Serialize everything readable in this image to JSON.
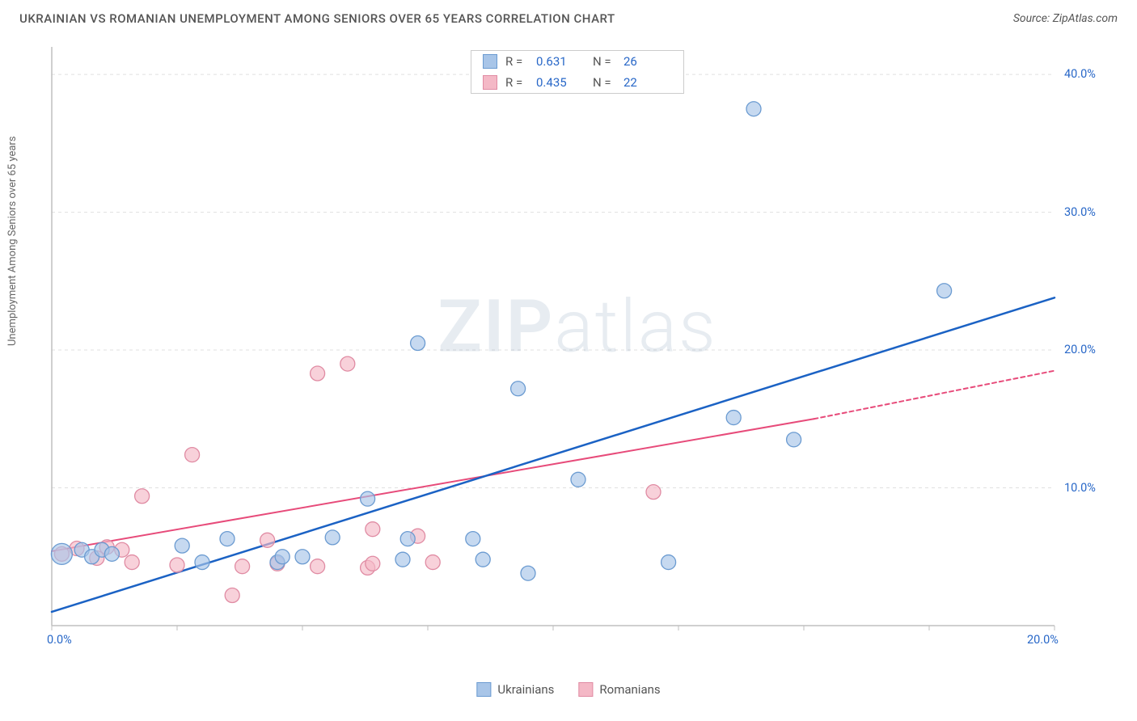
{
  "header": {
    "title": "UKRAINIAN VS ROMANIAN UNEMPLOYMENT AMONG SENIORS OVER 65 YEARS CORRELATION CHART",
    "source_prefix": "Source: ",
    "source": "ZipAtlas.com"
  },
  "y_axis_label": "Unemployment Among Seniors over 65 years",
  "watermark": {
    "bold": "ZIP",
    "light": "atlas"
  },
  "chart": {
    "type": "scatter",
    "xlim": [
      0,
      20
    ],
    "ylim": [
      0,
      42
    ],
    "x_ticks": [
      0,
      2.5,
      5,
      7.5,
      10,
      12.5,
      15,
      17.5,
      20
    ],
    "x_tick_labels": {
      "0": "0.0%",
      "20": "20.0%"
    },
    "y_ticks": [
      10,
      20,
      30,
      40
    ],
    "y_tick_labels": {
      "10": "10.0%",
      "20": "20.0%",
      "30": "30.0%",
      "40": "40.0%"
    },
    "grid_color": "#e0e0e0",
    "grid_dash": "4 4",
    "axis_color": "#bfbfbf",
    "background_color": "#ffffff",
    "tick_label_color": "#2968c8",
    "tick_label_fontsize": 14.5,
    "marker_shape": "circle",
    "marker_radius": 9,
    "marker_radius_alt": 13,
    "series": {
      "ukrainians": {
        "label": "Ukrainians",
        "fill": "#a8c5e8",
        "stroke": "#6b9bd1",
        "fill_opacity": 0.65,
        "line_color": "#1b62c4",
        "line_width": 2.5,
        "R": "0.631",
        "N": "26",
        "points": [
          [
            0.2,
            5.2
          ],
          [
            0.6,
            5.5
          ],
          [
            0.8,
            5.0
          ],
          [
            1.0,
            5.5
          ],
          [
            1.2,
            5.2
          ],
          [
            2.6,
            5.8
          ],
          [
            3.0,
            4.6
          ],
          [
            3.5,
            6.3
          ],
          [
            4.5,
            4.6
          ],
          [
            4.6,
            5.0
          ],
          [
            5.0,
            5.0
          ],
          [
            5.6,
            6.4
          ],
          [
            6.3,
            9.2
          ],
          [
            7.1,
            6.3
          ],
          [
            7.0,
            4.8
          ],
          [
            7.3,
            20.5
          ],
          [
            8.4,
            6.3
          ],
          [
            8.6,
            4.8
          ],
          [
            9.3,
            17.2
          ],
          [
            9.5,
            3.8
          ],
          [
            10.5,
            10.6
          ],
          [
            12.3,
            4.6
          ],
          [
            13.6,
            15.1
          ],
          [
            14.0,
            37.5
          ],
          [
            14.8,
            13.5
          ],
          [
            17.8,
            24.3
          ]
        ],
        "trend": {
          "x1": 0,
          "y1": 1.0,
          "x2": 20,
          "y2": 23.8,
          "dash": "none"
        }
      },
      "romanians": {
        "label": "Romanians",
        "fill": "#f4b8c6",
        "stroke": "#e08ba3",
        "fill_opacity": 0.65,
        "line_color": "#e74b7a",
        "line_width": 2,
        "R": "0.435",
        "N": "22",
        "points": [
          [
            0.2,
            5.2
          ],
          [
            0.5,
            5.6
          ],
          [
            0.9,
            4.9
          ],
          [
            1.1,
            5.7
          ],
          [
            1.4,
            5.5
          ],
          [
            1.6,
            4.6
          ],
          [
            1.8,
            9.4
          ],
          [
            2.5,
            4.4
          ],
          [
            2.8,
            12.4
          ],
          [
            3.6,
            2.2
          ],
          [
            3.8,
            4.3
          ],
          [
            4.3,
            6.2
          ],
          [
            4.5,
            4.5
          ],
          [
            5.3,
            4.3
          ],
          [
            5.3,
            18.3
          ],
          [
            5.9,
            19.0
          ],
          [
            6.3,
            4.2
          ],
          [
            6.4,
            4.5
          ],
          [
            6.4,
            7.0
          ],
          [
            7.3,
            6.5
          ],
          [
            7.6,
            4.6
          ],
          [
            12.0,
            9.7
          ]
        ],
        "trend_solid": {
          "x1": 0,
          "y1": 5.4,
          "x2": 15.2,
          "y2": 15.0
        },
        "trend_dashed": {
          "x1": 15.2,
          "y1": 15.0,
          "x2": 20,
          "y2": 18.5,
          "dash": "5 4"
        }
      }
    }
  },
  "legend_top": [
    {
      "series": "ukrainians",
      "R_label": "R =",
      "R": "0.631",
      "N_label": "N =",
      "N": "26"
    },
    {
      "series": "romanians",
      "R_label": "R =",
      "R": "0.435",
      "N_label": "N =",
      "N": "22"
    }
  ],
  "legend_bottom": [
    {
      "series": "ukrainians",
      "label": "Ukrainians"
    },
    {
      "series": "romanians",
      "label": "Romanians"
    }
  ]
}
